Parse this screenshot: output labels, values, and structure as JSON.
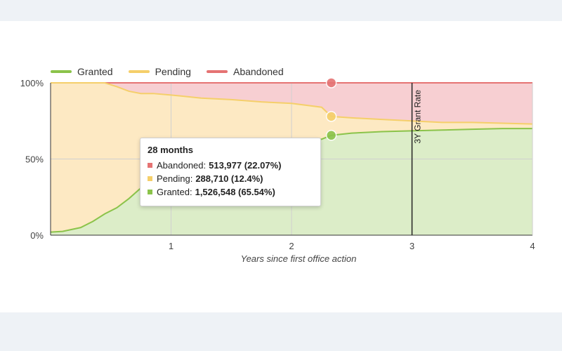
{
  "chart_data": {
    "type": "area",
    "stacked": true,
    "percent": true,
    "xlabel": "Years since first office action",
    "ylabel": "",
    "xlim": [
      0,
      4
    ],
    "ylim": [
      0,
      100
    ],
    "x_ticks": [
      "1",
      "2",
      "3",
      "4"
    ],
    "y_ticks": [
      "0%",
      "50%",
      "100%"
    ],
    "grid": true,
    "legend_position": "top-left",
    "x": [
      0,
      0.1,
      0.25,
      0.35,
      0.45,
      0.55,
      0.65,
      0.75,
      0.85,
      1.0,
      1.25,
      1.5,
      1.75,
      2.0,
      2.25,
      2.33,
      2.5,
      2.75,
      3.0,
      3.25,
      3.5,
      3.75,
      4.0
    ],
    "series": [
      {
        "name": "Granted",
        "color": "#8bc34a",
        "fill": "#dcedc8",
        "values": [
          2,
          2.5,
          5,
          9,
          14,
          18,
          24,
          31,
          36,
          42,
          48,
          52,
          56,
          59,
          63,
          65.54,
          67,
          68,
          68.5,
          69,
          69.5,
          70,
          70
        ]
      },
      {
        "name": "Pending",
        "color": "#f5cf6a",
        "fill": "#fde9c3",
        "values": [
          98,
          97.5,
          95,
          91,
          86,
          79.5,
          70.5,
          62,
          57,
          50,
          42,
          37,
          31.5,
          27.5,
          21,
          12.4,
          10,
          8,
          6.5,
          5,
          4.5,
          3.5,
          3
        ]
      },
      {
        "name": "Abandoned",
        "color": "#e57373",
        "fill": "#f7cfd2",
        "values": [
          0,
          0,
          0,
          0,
          0,
          2.5,
          5.5,
          7,
          7,
          8,
          10,
          11,
          12.5,
          13.5,
          16,
          22.07,
          23,
          24,
          25,
          26,
          26,
          26.5,
          27
        ]
      }
    ],
    "annotations": [
      {
        "type": "vertical-line",
        "x": 3,
        "label": "3Y Grant Rate"
      }
    ],
    "tooltip": {
      "x": 2.33,
      "title": "28 months",
      "rows": [
        {
          "name": "Abandoned",
          "label": "Abandoned:",
          "value": "513,977 (22.07%)",
          "color": "#e57373"
        },
        {
          "name": "Pending",
          "label": "Pending:",
          "value": "288,710 (12.4%)",
          "color": "#f5cf6a"
        },
        {
          "name": "Granted",
          "label": "Granted:",
          "value": "1,526,548 (65.54%)",
          "color": "#8bc34a"
        }
      ]
    }
  }
}
